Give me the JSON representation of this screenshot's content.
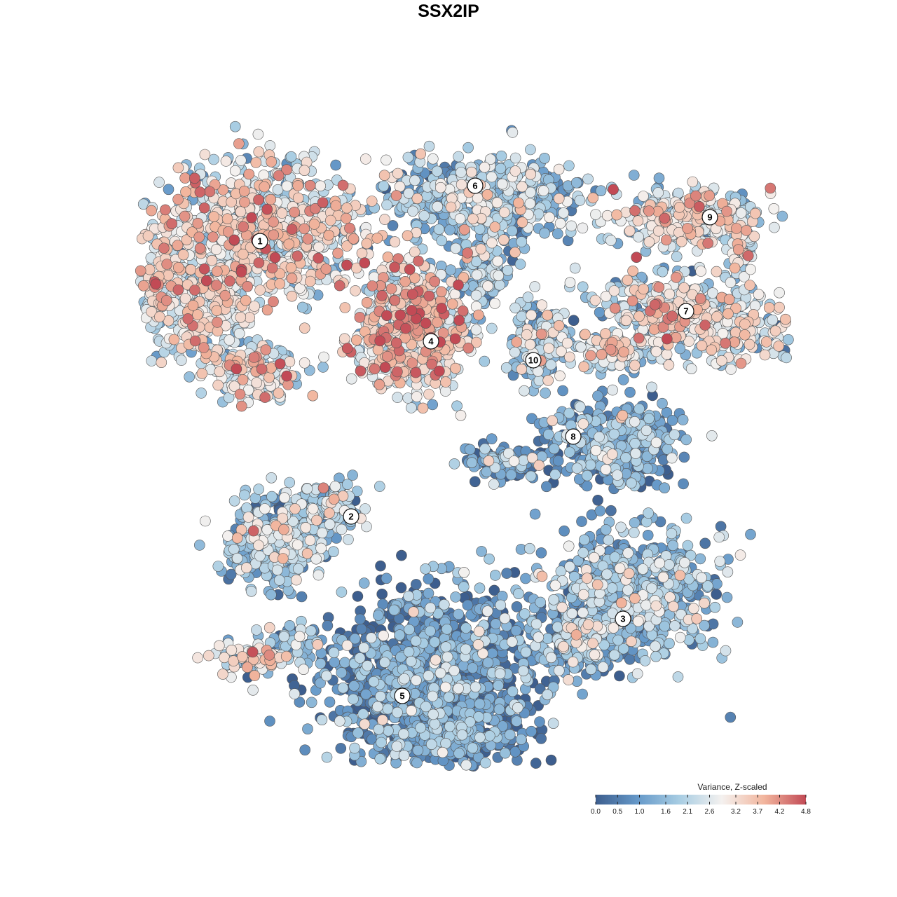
{
  "chart_data": {
    "type": "scatter",
    "title": "SSX2IP",
    "color_scale": {
      "title": "Variance, Z-scaled",
      "min": 0.0,
      "max": 4.8,
      "ticks": [
        "0.0",
        "0.5",
        "1.0",
        "1.6",
        "2.1",
        "2.6",
        "3.2",
        "3.7",
        "4.2",
        "4.8"
      ],
      "colors": [
        "#3d5e8e",
        "#6699c9",
        "#a8cde3",
        "#f4f1ef",
        "#f2b69e",
        "#c24a55"
      ]
    },
    "clusters": [
      {
        "label": "1",
        "mean_value": 2.6
      },
      {
        "label": "2",
        "mean_value": 1.6
      },
      {
        "label": "3",
        "mean_value": 1.4
      },
      {
        "label": "4",
        "mean_value": 3.0
      },
      {
        "label": "5",
        "mean_value": 0.8
      },
      {
        "label": "6",
        "mean_value": 1.6
      },
      {
        "label": "7",
        "mean_value": 2.4
      },
      {
        "label": "8",
        "mean_value": 1.0
      },
      {
        "label": "9",
        "mean_value": 2.5
      },
      {
        "label": "10",
        "mean_value": 1.8
      }
    ],
    "grid": false,
    "legend_position": "bottom-right"
  }
}
